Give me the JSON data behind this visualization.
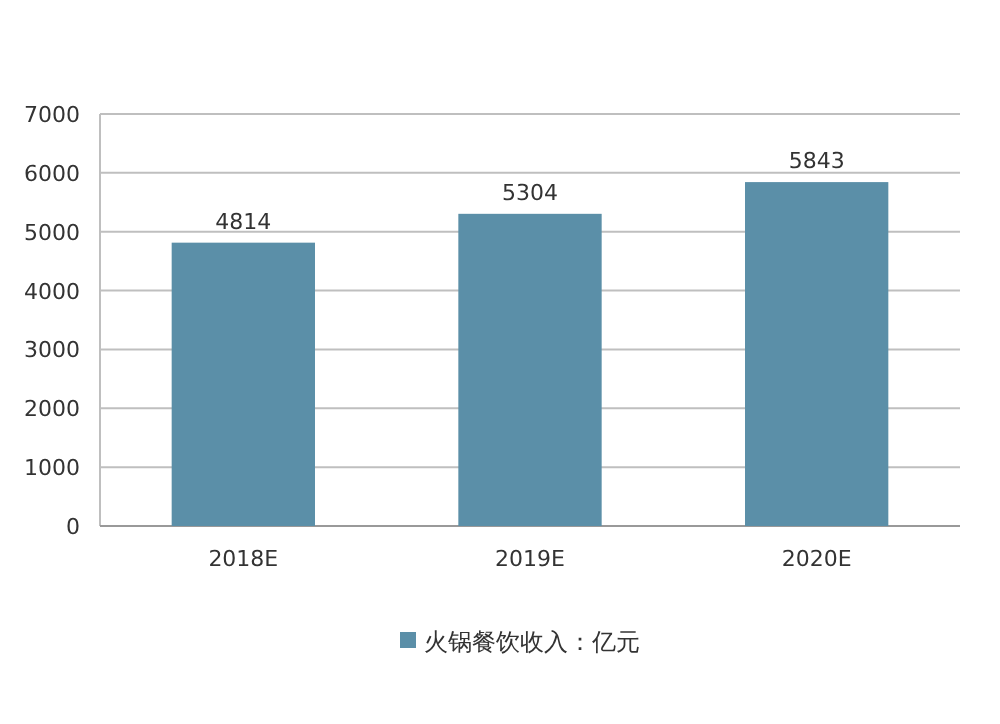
{
  "chart_data": {
    "type": "bar",
    "categories": [
      "2018E",
      "2019E",
      "2020E"
    ],
    "series": [
      {
        "name": "火锅餐饮收入：亿元",
        "color": "#5b8fa8",
        "values": [
          4814,
          5304,
          5843
        ]
      }
    ],
    "ylim": [
      0,
      7000
    ],
    "yticks": [
      0,
      1000,
      2000,
      3000,
      4000,
      5000,
      6000,
      7000
    ],
    "grid": "y",
    "legend": "bottom",
    "data_labels": true
  }
}
